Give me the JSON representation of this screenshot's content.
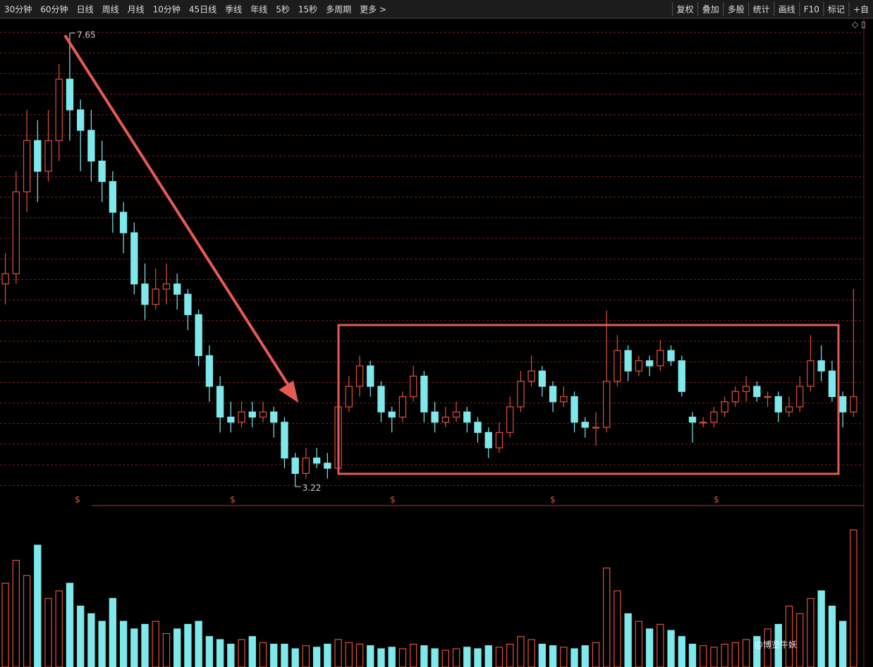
{
  "toolbar": {
    "tabs": [
      "30分钟",
      "60分钟",
      "日线",
      "周线",
      "月线",
      "10分钟",
      "45日线",
      "季线",
      "年线",
      "5秒",
      "15秒",
      "多周期",
      "更多 >"
    ],
    "tools": [
      "复权",
      "叠加",
      "多股",
      "统计",
      "画线",
      "F10",
      "标记",
      "+自"
    ]
  },
  "chart_data": {
    "type": "candlestick",
    "open": [
      5.2,
      5.3,
      6.1,
      6.6,
      6.3,
      6.6,
      7.2,
      6.9,
      6.7,
      6.4,
      6.2,
      5.9,
      5.7,
      5.2,
      5.0,
      5.15,
      5.2,
      5.1,
      4.9,
      4.5,
      4.2,
      3.9,
      3.85,
      3.95,
      3.9,
      3.95,
      3.85,
      3.5,
      3.35,
      3.5,
      3.45,
      3.4,
      4.0,
      4.2,
      4.4,
      4.2,
      3.95,
      3.9,
      4.1,
      4.3,
      3.95,
      3.85,
      3.9,
      3.95,
      3.85,
      3.75,
      3.6,
      3.75,
      4.0,
      4.25,
      4.35,
      4.2,
      4.05,
      4.1,
      3.85,
      3.8,
      3.8,
      4.25,
      4.55,
      4.35,
      4.45,
      4.4,
      4.55,
      4.45,
      3.9,
      3.85,
      3.85,
      3.95,
      4.05,
      4.15,
      4.2,
      4.1,
      4.1,
      3.95,
      4.0,
      4.2,
      4.45,
      4.35,
      4.1,
      3.95
    ],
    "high": [
      5.5,
      6.3,
      6.9,
      6.8,
      6.9,
      7.35,
      7.65,
      7.0,
      6.9,
      6.6,
      6.3,
      6.0,
      5.8,
      5.4,
      5.35,
      5.4,
      5.3,
      5.15,
      4.95,
      4.6,
      4.3,
      4.05,
      4.05,
      4.05,
      4.05,
      4.0,
      3.9,
      3.55,
      3.6,
      3.6,
      3.55,
      4.1,
      4.3,
      4.5,
      4.45,
      4.25,
      4.0,
      4.15,
      4.4,
      4.35,
      4.05,
      4.0,
      4.05,
      4.0,
      3.9,
      3.8,
      3.85,
      4.1,
      4.35,
      4.5,
      4.4,
      4.25,
      4.2,
      4.15,
      3.9,
      3.95,
      4.94,
      4.7,
      4.6,
      4.5,
      4.5,
      4.65,
      4.6,
      4.5,
      3.95,
      3.9,
      4.0,
      4.1,
      4.2,
      4.3,
      4.25,
      4.15,
      4.15,
      4.1,
      4.3,
      4.7,
      4.6,
      4.45,
      4.15,
      5.15
    ],
    "low": [
      5.0,
      5.2,
      5.9,
      6.0,
      6.2,
      6.4,
      6.6,
      6.3,
      6.2,
      6.0,
      5.7,
      5.5,
      5.1,
      4.85,
      4.95,
      5.0,
      4.95,
      4.75,
      4.4,
      4.05,
      3.75,
      3.75,
      3.8,
      3.8,
      3.85,
      3.7,
      3.4,
      3.22,
      3.3,
      3.4,
      3.3,
      3.4,
      3.95,
      4.1,
      4.1,
      3.85,
      3.75,
      3.85,
      4.05,
      3.85,
      3.75,
      3.8,
      3.85,
      3.75,
      3.65,
      3.5,
      3.55,
      3.7,
      3.95,
      4.2,
      4.1,
      3.95,
      4.0,
      3.75,
      3.7,
      3.62,
      3.75,
      4.2,
      4.25,
      4.3,
      4.3,
      4.35,
      4.4,
      4.1,
      3.65,
      3.8,
      3.8,
      3.9,
      4.0,
      4.05,
      4.05,
      4.0,
      3.85,
      3.9,
      3.95,
      4.15,
      4.25,
      4.05,
      3.8,
      3.9
    ],
    "close": [
      5.3,
      6.1,
      6.6,
      6.3,
      6.6,
      7.2,
      6.9,
      6.7,
      6.4,
      6.2,
      5.9,
      5.7,
      5.2,
      5.0,
      5.15,
      5.2,
      5.1,
      4.9,
      4.5,
      4.2,
      3.9,
      3.85,
      3.95,
      3.9,
      3.95,
      3.85,
      3.5,
      3.35,
      3.5,
      3.45,
      3.4,
      4.0,
      4.2,
      4.4,
      4.2,
      3.95,
      3.9,
      4.1,
      4.3,
      3.95,
      3.85,
      3.9,
      3.95,
      3.85,
      3.75,
      3.6,
      3.75,
      4.0,
      4.25,
      4.35,
      4.2,
      4.05,
      4.1,
      3.85,
      3.8,
      3.8,
      4.25,
      4.55,
      4.35,
      4.45,
      4.4,
      4.55,
      4.45,
      4.15,
      3.85,
      3.85,
      3.95,
      4.05,
      4.15,
      4.2,
      4.1,
      4.1,
      3.95,
      4.0,
      4.2,
      4.45,
      4.35,
      4.1,
      3.95,
      4.1
    ],
    "volume": [
      55,
      70,
      60,
      80,
      45,
      50,
      55,
      40,
      35,
      30,
      45,
      30,
      25,
      28,
      30,
      22,
      25,
      28,
      30,
      20,
      18,
      15,
      18,
      20,
      16,
      15,
      15,
      12,
      14,
      13,
      15,
      18,
      16,
      15,
      14,
      12,
      13,
      12,
      15,
      14,
      12,
      11,
      12,
      13,
      12,
      14,
      13,
      15,
      20,
      18,
      15,
      14,
      13,
      12,
      14,
      16,
      65,
      50,
      35,
      30,
      25,
      28,
      24,
      20,
      15,
      14,
      13,
      15,
      16,
      18,
      20,
      25,
      28,
      40,
      35,
      45,
      50,
      40,
      30,
      90
    ],
    "ylim": [
      3.05,
      7.78
    ],
    "volume_ylim": [
      0,
      100
    ],
    "max_mark": 7.65,
    "min_mark": 3.22,
    "event_marker": "$",
    "watermark": "@博览牛妖",
    "up_color": "#e0503c",
    "down_color": "#7ee8ea",
    "grid": true
  }
}
